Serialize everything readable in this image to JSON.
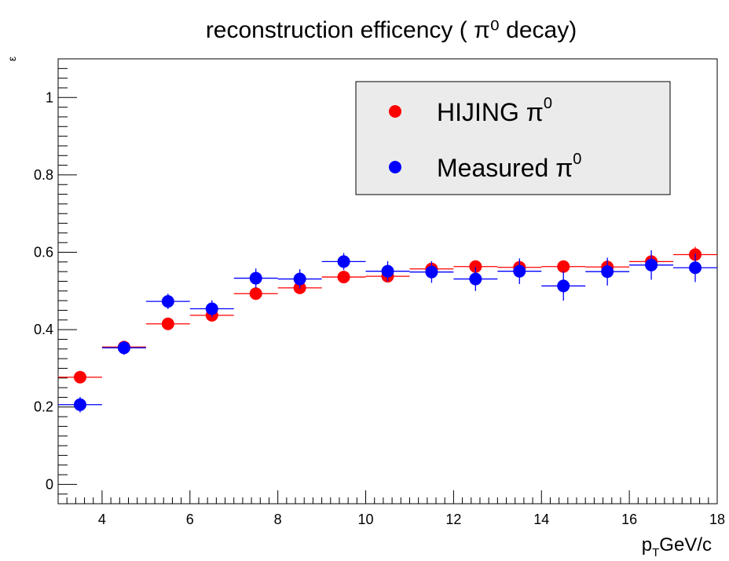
{
  "chart_data": {
    "type": "scatter",
    "title": "reconstruction efficency (  π⁰ decay)",
    "xlabel": "p_T GeV/c",
    "xlabel_main": "p",
    "xlabel_sub": "T",
    "xlabel_rest": "GeV/c",
    "ylabel": "ε",
    "xlim": [
      3,
      18
    ],
    "ylim": [
      -0.05,
      1.1
    ],
    "x_ticks": [
      4,
      6,
      8,
      10,
      12,
      14,
      16,
      18
    ],
    "x_tick_labels": [
      "4",
      "6",
      "8",
      "10",
      "12",
      "14",
      "16",
      "18"
    ],
    "y_ticks": [
      0,
      0.2,
      0.4,
      0.6,
      0.8,
      1
    ],
    "y_tick_labels": [
      "0",
      "0.2",
      "0.4",
      "0.6",
      "0.8",
      "1"
    ],
    "grid": false,
    "legend_position": "top-right",
    "series": [
      {
        "name": "HIJING π⁰",
        "name_main": "HIJING π",
        "name_sup": "0",
        "color": "#ff0000",
        "x": [
          3.5,
          4.5,
          5.5,
          6.5,
          7.5,
          8.5,
          9.5,
          10.5,
          11.5,
          12.5,
          13.5,
          14.5,
          15.5,
          16.5,
          17.5
        ],
        "y": [
          0.277,
          0.355,
          0.415,
          0.437,
          0.493,
          0.508,
          0.536,
          0.538,
          0.557,
          0.563,
          0.561,
          0.563,
          0.562,
          0.576,
          0.594
        ],
        "yerr": [
          0.008,
          0.008,
          0.009,
          0.012,
          0.011,
          0.012,
          0.014,
          0.014,
          0.015,
          0.016,
          0.016,
          0.016,
          0.017,
          0.018,
          0.02
        ],
        "xerr": [
          0.5,
          0.5,
          0.5,
          0.5,
          0.5,
          0.5,
          0.5,
          0.5,
          0.5,
          0.5,
          0.5,
          0.5,
          0.5,
          0.5,
          0.5
        ]
      },
      {
        "name": "Measured π⁰",
        "name_main": "Measured π",
        "name_sup": "0",
        "color": "#0000ff",
        "x": [
          3.5,
          4.5,
          5.5,
          6.5,
          7.5,
          8.5,
          9.5,
          10.5,
          11.5,
          12.5,
          13.5,
          14.5,
          15.5,
          16.5,
          17.5
        ],
        "y": [
          0.206,
          0.353,
          0.473,
          0.454,
          0.533,
          0.531,
          0.576,
          0.551,
          0.549,
          0.531,
          0.551,
          0.513,
          0.55,
          0.567,
          0.56
        ],
        "yerr": [
          0.02,
          0.018,
          0.02,
          0.022,
          0.025,
          0.025,
          0.022,
          0.026,
          0.028,
          0.031,
          0.033,
          0.038,
          0.036,
          0.038,
          0.037
        ],
        "xerr": [
          0.5,
          0.5,
          0.5,
          0.5,
          0.5,
          0.5,
          0.5,
          0.5,
          0.5,
          0.5,
          0.5,
          0.5,
          0.5,
          0.5,
          0.5
        ]
      }
    ]
  }
}
